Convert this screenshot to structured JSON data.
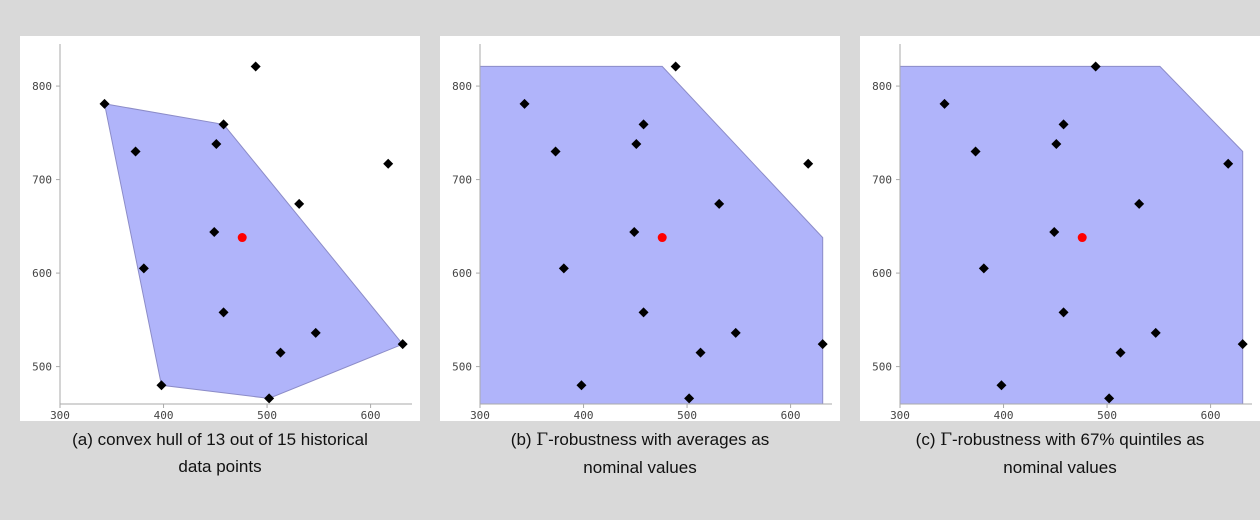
{
  "chart_data": [
    {
      "type": "scatter",
      "title": "",
      "xlabel": "",
      "ylabel": "",
      "xlim": [
        300,
        640
      ],
      "ylim": [
        460,
        845
      ],
      "xticks": [
        300,
        400,
        500,
        600
      ],
      "yticks": [
        500,
        600,
        700,
        800
      ],
      "xtick_labels": [
        "300",
        "400",
        "500",
        "600"
      ],
      "ytick_labels": [
        "500",
        "600",
        "700",
        "800"
      ],
      "grid": false,
      "colors": {
        "region": "#b0b4fa",
        "region_edge": "#8c8cc8",
        "points": "#000000",
        "nominal": "#ff0000",
        "axis": "#aaaaaa",
        "tick_text": "#444444"
      },
      "points": [
        [
          489,
          821
        ],
        [
          343,
          781
        ],
        [
          458,
          759
        ],
        [
          451,
          738
        ],
        [
          373,
          730
        ],
        [
          617,
          717
        ],
        [
          531,
          674
        ],
        [
          449,
          644
        ],
        [
          381,
          605
        ],
        [
          458,
          558
        ],
        [
          547,
          536
        ],
        [
          631,
          524
        ],
        [
          513,
          515
        ],
        [
          398,
          480
        ],
        [
          502,
          466
        ]
      ],
      "nominal_point": [
        476,
        638
      ],
      "region": [
        [
          343,
          781
        ],
        [
          458,
          759
        ],
        [
          631,
          524
        ],
        [
          502,
          466
        ],
        [
          398,
          480
        ]
      ],
      "caption": [
        "(a) convex hull of 13 out of 15 historical",
        "data points"
      ]
    },
    {
      "type": "scatter",
      "title": "",
      "xlabel": "",
      "ylabel": "",
      "xlim": [
        300,
        640
      ],
      "ylim": [
        460,
        845
      ],
      "xticks": [
        300,
        400,
        500,
        600
      ],
      "yticks": [
        500,
        600,
        700,
        800
      ],
      "xtick_labels": [
        "300",
        "400",
        "500",
        "600"
      ],
      "ytick_labels": [
        "500",
        "600",
        "700",
        "800"
      ],
      "grid": false,
      "colors": {
        "region": "#b0b4fa",
        "region_edge": "#8c8cc8",
        "points": "#000000",
        "nominal": "#ff0000",
        "axis": "#aaaaaa",
        "tick_text": "#444444"
      },
      "points": [
        [
          489,
          821
        ],
        [
          343,
          781
        ],
        [
          458,
          759
        ],
        [
          451,
          738
        ],
        [
          373,
          730
        ],
        [
          617,
          717
        ],
        [
          531,
          674
        ],
        [
          449,
          644
        ],
        [
          381,
          605
        ],
        [
          458,
          558
        ],
        [
          547,
          536
        ],
        [
          631,
          524
        ],
        [
          513,
          515
        ],
        [
          398,
          480
        ],
        [
          502,
          466
        ]
      ],
      "nominal_point": [
        476,
        638
      ],
      "region": [
        [
          300,
          821
        ],
        [
          476,
          821
        ],
        [
          631,
          638
        ],
        [
          631,
          460
        ],
        [
          300,
          460
        ]
      ],
      "caption_pre": "(b) ",
      "caption_symbol": "Γ",
      "caption_post": "-robustness with averages as",
      "caption_line2": "nominal values"
    },
    {
      "type": "scatter",
      "title": "",
      "xlabel": "",
      "ylabel": "",
      "xlim": [
        300,
        640
      ],
      "ylim": [
        460,
        845
      ],
      "xticks": [
        300,
        400,
        500,
        600
      ],
      "yticks": [
        500,
        600,
        700,
        800
      ],
      "xtick_labels": [
        "300",
        "400",
        "500",
        "600"
      ],
      "ytick_labels": [
        "500",
        "600",
        "700",
        "800"
      ],
      "grid": false,
      "colors": {
        "region": "#b0b4fa",
        "region_edge": "#8c8cc8",
        "points": "#000000",
        "nominal": "#ff0000",
        "axis": "#aaaaaa",
        "tick_text": "#444444"
      },
      "points": [
        [
          489,
          821
        ],
        [
          343,
          781
        ],
        [
          458,
          759
        ],
        [
          451,
          738
        ],
        [
          373,
          730
        ],
        [
          617,
          717
        ],
        [
          531,
          674
        ],
        [
          449,
          644
        ],
        [
          381,
          605
        ],
        [
          458,
          558
        ],
        [
          547,
          536
        ],
        [
          631,
          524
        ],
        [
          513,
          515
        ],
        [
          398,
          480
        ],
        [
          502,
          466
        ]
      ],
      "nominal_point": [
        476,
        638
      ],
      "region": [
        [
          300,
          821
        ],
        [
          551,
          821
        ],
        [
          631,
          730
        ],
        [
          631,
          460
        ],
        [
          300,
          460
        ]
      ],
      "caption_pre": "(c) ",
      "caption_symbol": "Γ",
      "caption_post": "-robustness with 67% quintiles as",
      "caption_line2": "nominal values"
    }
  ]
}
